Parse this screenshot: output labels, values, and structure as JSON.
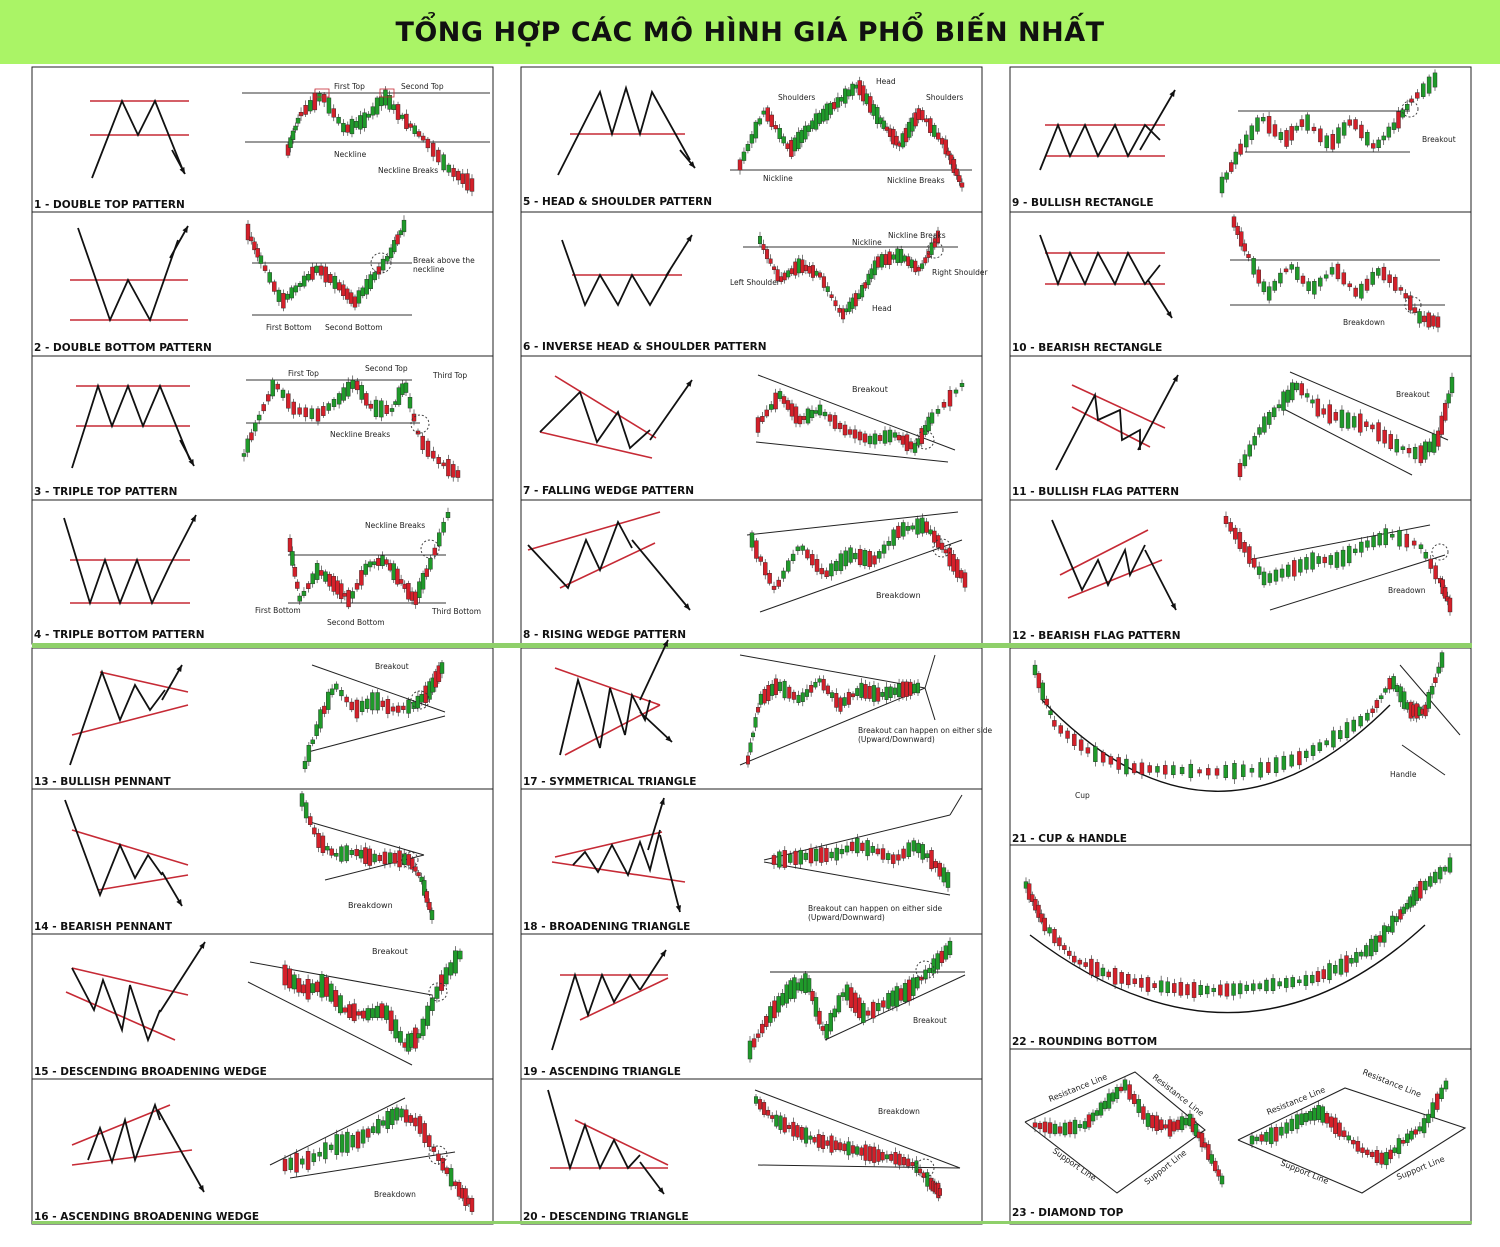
{
  "title": "TỔNG HỢP CÁC MÔ HÌNH GIÁ PHỔ BIẾN NHẤT",
  "colors": {
    "banner": "#aaf466",
    "bull": "#1f9a2a",
    "bear": "#d4202a",
    "pattern_line": "#c62a35",
    "divider": "#8fd06a"
  },
  "patterns": [
    {
      "id": 1,
      "caption": "1 - DOUBLE TOP PATTERN",
      "labels": [
        "First Top",
        "Second Top",
        "Neckline",
        "Neckline Breaks"
      ]
    },
    {
      "id": 2,
      "caption": "2 - DOUBLE BOTTOM PATTERN",
      "labels": [
        "Break above the",
        "neckline",
        "First Bottom",
        "Second Bottom"
      ]
    },
    {
      "id": 3,
      "caption": "3 - TRIPLE TOP PATTERN",
      "labels": [
        "First Top",
        "Second Top",
        "Third Top",
        "Neckline Breaks"
      ]
    },
    {
      "id": 4,
      "caption": "4 - TRIPLE BOTTOM PATTERN",
      "labels": [
        "Neckline Breaks",
        "First Bottom",
        "Second Bottom",
        "Third Bottom"
      ]
    },
    {
      "id": 5,
      "caption": "5 - HEAD & SHOULDER PATTERN",
      "labels": [
        "Head",
        "Shoulders",
        "Shoulders",
        "Nickline",
        "Nickline Breaks"
      ]
    },
    {
      "id": 6,
      "caption": "6 - INVERSE HEAD & SHOULDER PATTERN",
      "labels": [
        "Nickline",
        "Nickline Breaks",
        "Left Shoulder",
        "Right Shoulder",
        "Head"
      ]
    },
    {
      "id": 7,
      "caption": "7 - FALLING WEDGE PATTERN",
      "labels": [
        "Breakout"
      ]
    },
    {
      "id": 8,
      "caption": "8 - RISING WEDGE PATTERN",
      "labels": [
        "Breakdown"
      ]
    },
    {
      "id": 9,
      "caption": "9 - BULLISH RECTANGLE",
      "labels": [
        "Breakout"
      ]
    },
    {
      "id": 10,
      "caption": "10 - BEARISH RECTANGLE",
      "labels": [
        "Breakdown"
      ]
    },
    {
      "id": 11,
      "caption": "11 - BULLISH FLAG PATTERN",
      "labels": [
        "Breakout"
      ]
    },
    {
      "id": 12,
      "caption": "12 - BEARISH FLAG PATTERN",
      "labels": [
        "Breadown"
      ]
    },
    {
      "id": 13,
      "caption": "13 - BULLISH PENNANT",
      "labels": [
        "Breakout"
      ]
    },
    {
      "id": 14,
      "caption": "14 - BEARISH PENNANT",
      "labels": [
        "Breakdown"
      ]
    },
    {
      "id": 15,
      "caption": "15 - DESCENDING BROADENING WEDGE",
      "labels": [
        "Breakout"
      ]
    },
    {
      "id": 16,
      "caption": "16 - ASCENDING BROADENING WEDGE",
      "labels": [
        "Breakdown"
      ]
    },
    {
      "id": 17,
      "caption": "17 - SYMMETRICAL TRIANGLE",
      "labels": [
        "Breakout can happen on either side",
        "(Upward/Downward)"
      ]
    },
    {
      "id": 18,
      "caption": "18 - BROADENING TRIANGLE",
      "labels": [
        "Breakout can happen on either side",
        "(Upward/Downward)"
      ]
    },
    {
      "id": 19,
      "caption": "19 - ASCENDING TRIANGLE",
      "labels": [
        "Breakout"
      ]
    },
    {
      "id": 20,
      "caption": "20 - DESCENDING TRIANGLE",
      "labels": [
        "Breakdown"
      ]
    },
    {
      "id": 21,
      "caption": "21 - CUP & HANDLE",
      "labels": [
        "Cup",
        "Handle"
      ]
    },
    {
      "id": 22,
      "caption": "22 - ROUNDING BOTTOM",
      "labels": []
    },
    {
      "id": 23,
      "caption": "23 - DIAMOND TOP",
      "labels": [
        "Resistance Line",
        "Resistance Line",
        "Support Line",
        "Support Line",
        "Resistance Line",
        "Resistance Line",
        "Support Line",
        "Support Line"
      ]
    }
  ]
}
